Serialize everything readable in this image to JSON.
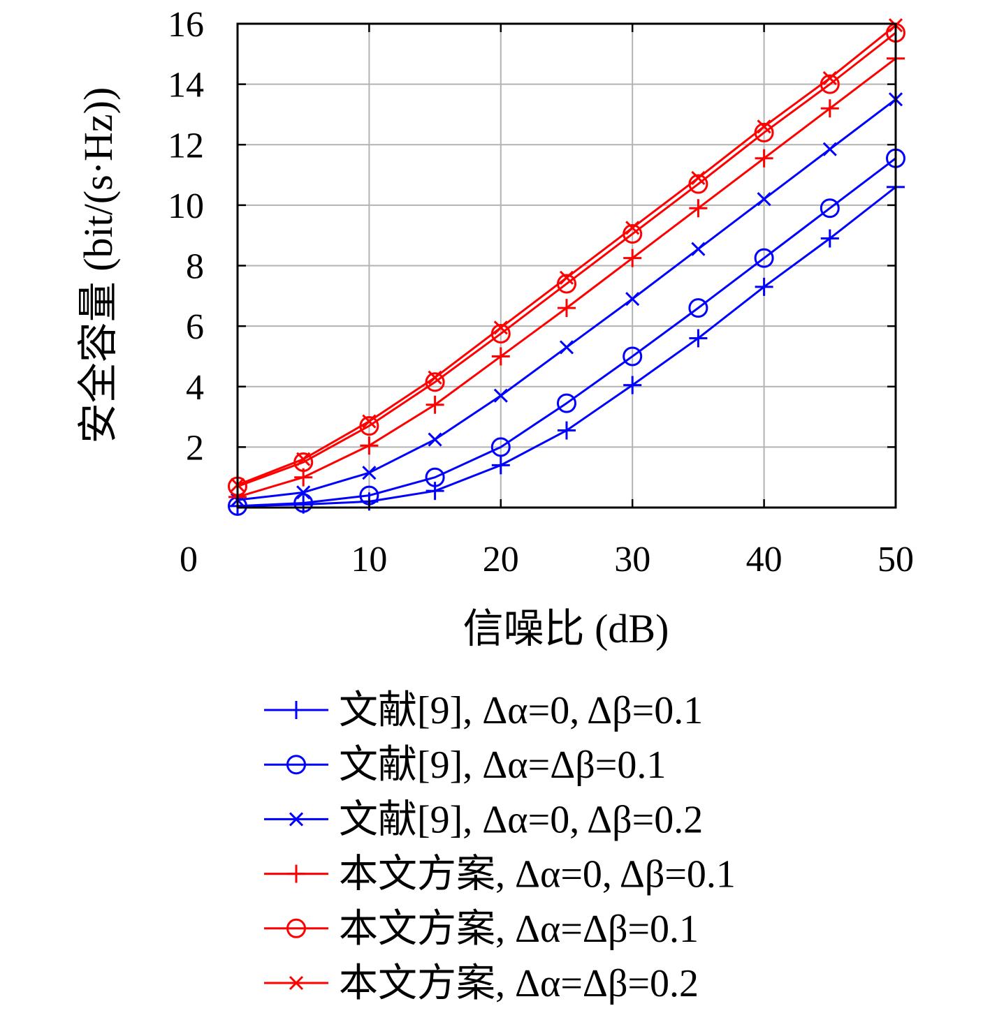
{
  "chart_data": {
    "type": "line",
    "xlabel": "信噪比 (dB)",
    "ylabel": "安全容量 (bit/(s·Hz))",
    "xlim": [
      0,
      50
    ],
    "ylim": [
      0,
      16
    ],
    "xticks": [
      0,
      10,
      20,
      30,
      40,
      50
    ],
    "yticks": [
      2,
      4,
      6,
      8,
      10,
      12,
      14,
      16
    ],
    "grid": true,
    "legend": "bottom",
    "x": [
      0,
      5,
      10,
      15,
      20,
      25,
      30,
      35,
      40,
      45,
      50
    ],
    "series": [
      {
        "name": "文献[9], Δα=0, Δβ=0.1",
        "color": "#0000ff",
        "marker": "plus",
        "values": [
          0.05,
          0.1,
          0.2,
          0.55,
          1.4,
          2.55,
          4.05,
          5.6,
          7.3,
          8.9,
          10.6
        ]
      },
      {
        "name": "文献[9], Δα=Δβ=0.1",
        "color": "#0000ff",
        "marker": "circle",
        "values": [
          0.05,
          0.15,
          0.4,
          1.0,
          2.0,
          3.45,
          5.0,
          6.6,
          8.25,
          9.9,
          11.55
        ]
      },
      {
        "name": "文献[9], Δα=0, Δβ=0.2",
        "color": "#0000ff",
        "marker": "cross",
        "values": [
          0.25,
          0.5,
          1.15,
          2.25,
          3.7,
          5.3,
          6.9,
          8.55,
          10.2,
          11.85,
          13.5
        ]
      },
      {
        "name": "本文方案, Δα=0, Δβ=0.1",
        "color": "#ff0000",
        "marker": "plus",
        "values": [
          0.35,
          1.0,
          2.05,
          3.4,
          5.0,
          6.6,
          8.25,
          9.9,
          11.55,
          13.2,
          14.85
        ]
      },
      {
        "name": "本文方案, Δα=Δβ=0.1",
        "color": "#ff0000",
        "marker": "circle",
        "values": [
          0.7,
          1.5,
          2.7,
          4.15,
          5.75,
          7.4,
          9.05,
          10.7,
          12.4,
          14.0,
          15.7
        ]
      },
      {
        "name": "本文方案, Δα=Δβ=0.2",
        "color": "#ff0000",
        "marker": "cross",
        "values": [
          0.75,
          1.6,
          2.85,
          4.3,
          5.95,
          7.6,
          9.25,
          10.9,
          12.6,
          14.2,
          15.95
        ]
      }
    ]
  }
}
